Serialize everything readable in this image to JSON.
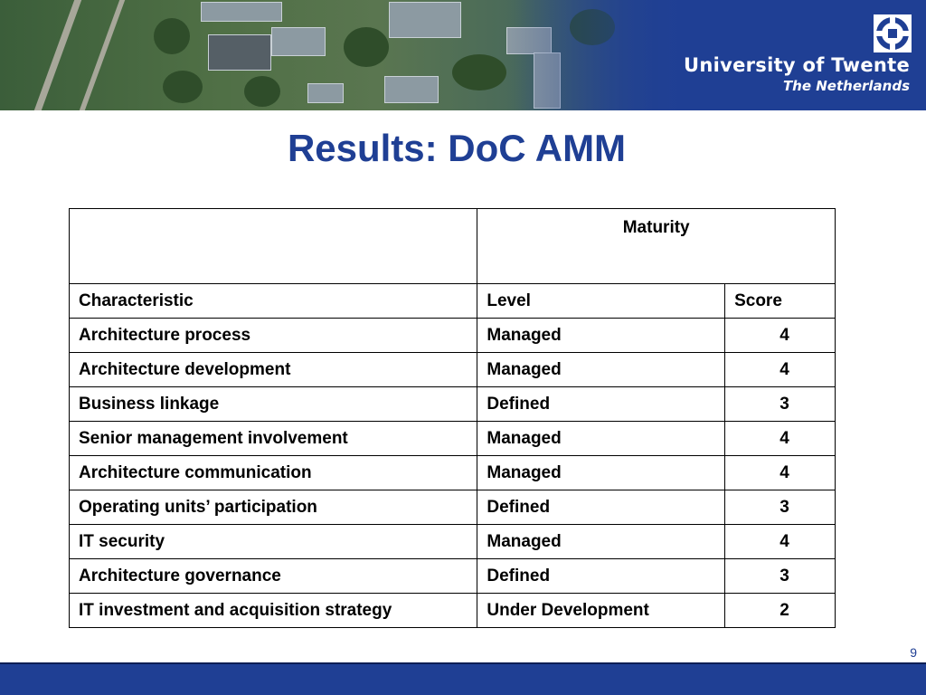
{
  "header": {
    "university": "University of Twente",
    "country": "The Netherlands",
    "logo_icon": "university-of-twente-logo-icon",
    "banner_color": "#1f3f94"
  },
  "title": "Results: DoC AMM",
  "table": {
    "group_header": "Maturity",
    "columns": [
      "Characteristic",
      "Level",
      "Score"
    ],
    "rows": [
      {
        "characteristic": "Architecture process",
        "level": "Managed",
        "score": "4"
      },
      {
        "characteristic": "Architecture development",
        "level": "Managed",
        "score": "4"
      },
      {
        "characteristic": "Business linkage",
        "level": "Defined",
        "score": "3"
      },
      {
        "characteristic": "Senior management involvement",
        "level": "Managed",
        "score": "4"
      },
      {
        "characteristic": "Architecture communication",
        "level": "Managed",
        "score": "4"
      },
      {
        "characteristic": "Operating units’ participation",
        "level": "Defined",
        "score": "3"
      },
      {
        "characteristic": "IT security",
        "level": "Managed",
        "score": "4"
      },
      {
        "characteristic": "Architecture governance",
        "level": "Defined",
        "score": "3"
      },
      {
        "characteristic": "IT investment and acquisition strategy",
        "level": "Under Development",
        "score": "2"
      }
    ]
  },
  "page_number": "9"
}
